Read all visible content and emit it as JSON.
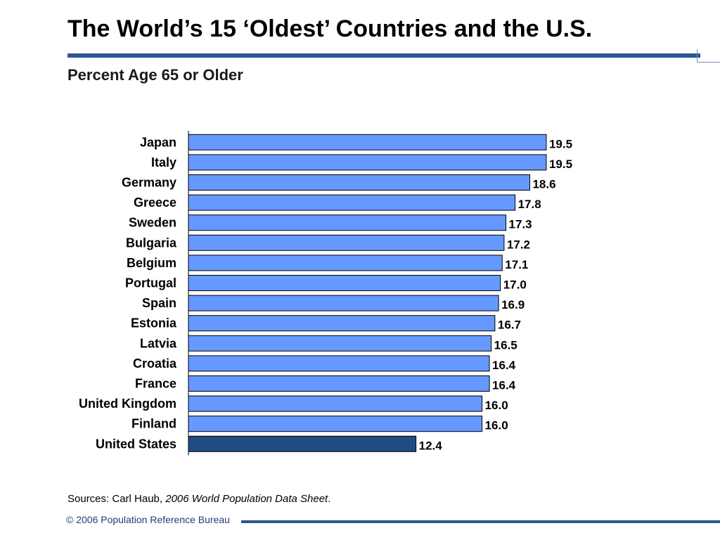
{
  "slide": {
    "title": "The World’s 15 ‘Oldest’ Countries and the U.S.",
    "subtitle": "Percent Age 65 or Older",
    "source_prefix": "Sources: Carl Haub, ",
    "source_title": "2006 World Population Data Sheet",
    "source_suffix": ".",
    "footer": "© 2006 Population Reference Bureau"
  },
  "colors": {
    "bar_default": "#6699ff",
    "bar_highlight": "#1f4b80",
    "rule": "#2b5594"
  },
  "chart_data": {
    "type": "bar",
    "orientation": "horizontal",
    "title": "Percent Age 65 or Older",
    "xlabel": "",
    "ylabel": "",
    "xlim": [
      0,
      20
    ],
    "categories": [
      "Japan",
      "Italy",
      "Germany",
      "Greece",
      "Sweden",
      "Bulgaria",
      "Belgium",
      "Portugal",
      "Spain",
      "Estonia",
      "Latvia",
      "Croatia",
      "France",
      "United Kingdom",
      "Finland",
      "United States"
    ],
    "values": [
      19.5,
      19.5,
      18.6,
      17.8,
      17.3,
      17.2,
      17.1,
      17.0,
      16.9,
      16.7,
      16.5,
      16.4,
      16.4,
      16.0,
      16.0,
      12.4
    ],
    "value_labels": [
      "19.5",
      "19.5",
      "18.6",
      "17.8",
      "17.3",
      "17.2",
      "17.1",
      "17.0",
      "16.9",
      "16.7",
      "16.5",
      "16.4",
      "16.4",
      "16.0",
      "16.0",
      "12.4"
    ],
    "highlight_category": "United States",
    "grid": false,
    "legend": "none"
  }
}
